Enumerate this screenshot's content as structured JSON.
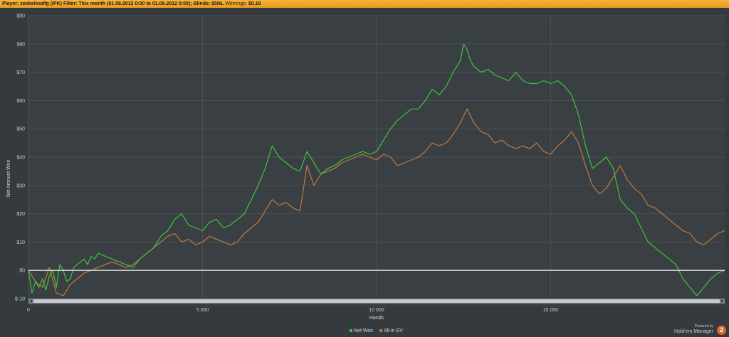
{
  "header": {
    "player_label": "Player:",
    "player_name": "zeebelosdfg (IPK)",
    "filter_label": "Filter:",
    "filter_value": "This month (01.08.2012 0:00 to 01.09.2012 0:00); Blinds: $5NL",
    "winnings_label": "Winnings:",
    "winnings_value": "$0.18"
  },
  "chart_data": {
    "type": "line",
    "xlabel": "Hands",
    "ylabel": "Net Amount Won",
    "xlim": [
      0,
      20000
    ],
    "ylim": [
      -10,
      90
    ],
    "x_ticks": [
      {
        "value": 0,
        "label": "0"
      },
      {
        "value": 5000,
        "label": "5 000"
      },
      {
        "value": 10000,
        "label": "10 000"
      },
      {
        "value": 15000,
        "label": "15 000"
      }
    ],
    "y_ticks": [
      {
        "value": 90,
        "label": "$90"
      },
      {
        "value": 80,
        "label": "$80"
      },
      {
        "value": 70,
        "label": "$70"
      },
      {
        "value": 60,
        "label": "$60"
      },
      {
        "value": 50,
        "label": "$50"
      },
      {
        "value": 40,
        "label": "$40"
      },
      {
        "value": 30,
        "label": "$30"
      },
      {
        "value": 20,
        "label": "$20"
      },
      {
        "value": 10,
        "label": "$10"
      },
      {
        "value": 0,
        "label": "$0"
      },
      {
        "value": -10,
        "label": "$-10"
      }
    ],
    "grid": true,
    "legend_position": "bottom-center",
    "zero_line": true,
    "series": [
      {
        "name": "Net Won",
        "color": "#3cc43c",
        "x": [
          0,
          100,
          200,
          300,
          400,
          500,
          600,
          700,
          800,
          900,
          1000,
          1100,
          1200,
          1300,
          1400,
          1500,
          1600,
          1700,
          1800,
          1900,
          2000,
          2200,
          2400,
          2600,
          2800,
          3000,
          3200,
          3400,
          3600,
          3800,
          4000,
          4200,
          4400,
          4600,
          4800,
          5000,
          5200,
          5400,
          5600,
          5800,
          6000,
          6200,
          6400,
          6600,
          6800,
          7000,
          7200,
          7400,
          7600,
          7800,
          8000,
          8200,
          8400,
          8600,
          8800,
          9000,
          9200,
          9400,
          9600,
          9800,
          10000,
          10200,
          10400,
          10600,
          10800,
          11000,
          11200,
          11400,
          11600,
          11800,
          12000,
          12200,
          12400,
          12500,
          12600,
          12700,
          12800,
          13000,
          13200,
          13400,
          13600,
          13800,
          14000,
          14200,
          14400,
          14600,
          14800,
          15000,
          15200,
          15400,
          15600,
          15800,
          16000,
          16200,
          16400,
          16600,
          16800,
          17000,
          17200,
          17400,
          17600,
          17800,
          18000,
          18200,
          18400,
          18600,
          18800,
          19000,
          19200,
          19400,
          19600,
          19800,
          20000
        ],
        "values": [
          0,
          -8,
          -4,
          -6,
          -3,
          -7,
          -2,
          0,
          -6,
          2,
          0,
          -4,
          -3,
          1,
          2,
          3,
          4,
          2,
          5,
          4,
          6,
          5,
          4,
          3,
          2,
          1,
          4,
          6,
          8,
          12,
          14,
          18,
          20,
          16,
          15,
          14,
          17,
          18,
          15,
          16,
          18,
          20,
          25,
          30,
          36,
          44,
          40,
          38,
          36,
          35,
          42,
          38,
          34,
          36,
          37,
          39,
          40,
          41,
          42,
          41,
          42,
          46,
          50,
          53,
          55,
          57,
          57,
          60,
          64,
          62,
          65,
          70,
          74,
          80,
          78,
          74,
          72,
          70,
          71,
          69,
          68,
          67,
          70,
          67,
          66,
          66,
          67,
          66,
          67,
          65,
          62,
          55,
          44,
          36,
          38,
          40,
          36,
          25,
          22,
          20,
          15,
          10,
          8,
          6,
          4,
          2,
          -3,
          -6,
          -9,
          -6,
          -3,
          -1,
          0
        ]
      },
      {
        "name": "All-in EV",
        "color": "#c07a3e",
        "x": [
          0,
          200,
          400,
          600,
          800,
          1000,
          1200,
          1400,
          1600,
          1800,
          2000,
          2200,
          2400,
          2600,
          2800,
          3000,
          3200,
          3400,
          3600,
          3800,
          4000,
          4200,
          4400,
          4600,
          4800,
          5000,
          5200,
          5400,
          5600,
          5800,
          6000,
          6200,
          6400,
          6600,
          6800,
          7000,
          7200,
          7400,
          7600,
          7800,
          8000,
          8200,
          8400,
          8600,
          8800,
          9000,
          9200,
          9400,
          9600,
          9800,
          10000,
          10200,
          10400,
          10600,
          10800,
          11000,
          11200,
          11400,
          11600,
          11800,
          12000,
          12200,
          12400,
          12600,
          12800,
          13000,
          13200,
          13400,
          13600,
          13800,
          14000,
          14200,
          14400,
          14600,
          14800,
          15000,
          15200,
          15400,
          15600,
          15800,
          16000,
          16200,
          16400,
          16600,
          16800,
          17000,
          17200,
          17400,
          17600,
          17800,
          18000,
          18200,
          18400,
          18600,
          18800,
          19000,
          19200,
          19400,
          19600,
          19800,
          20000
        ],
        "values": [
          0,
          -4,
          -6,
          1,
          -8,
          -9,
          -5,
          -3,
          -1,
          0,
          1,
          2,
          3,
          2,
          1,
          2,
          4,
          6,
          8,
          10,
          12,
          13,
          10,
          11,
          9,
          10,
          12,
          11,
          10,
          9,
          10,
          13,
          15,
          17,
          21,
          25,
          23,
          24,
          22,
          21,
          37,
          30,
          34,
          35,
          36,
          38,
          39,
          40,
          41,
          40,
          39,
          41,
          40,
          37,
          38,
          39,
          40,
          42,
          45,
          44,
          45,
          48,
          52,
          57,
          52,
          49,
          48,
          45,
          46,
          44,
          43,
          44,
          43,
          45,
          42,
          41,
          44,
          46,
          49,
          45,
          37,
          30,
          27,
          29,
          33,
          37,
          32,
          29,
          27,
          23,
          22,
          20,
          18,
          16,
          14,
          13,
          10,
          9,
          11,
          13,
          14
        ]
      }
    ]
  },
  "legend_items": [
    {
      "name": "Net Won",
      "color": "#3cc43c"
    },
    {
      "name": "All-in EV",
      "color": "#c07a3e"
    }
  ],
  "branding": {
    "powered": "Powered by",
    "name": "Hold'em Manager",
    "badge": "2"
  }
}
